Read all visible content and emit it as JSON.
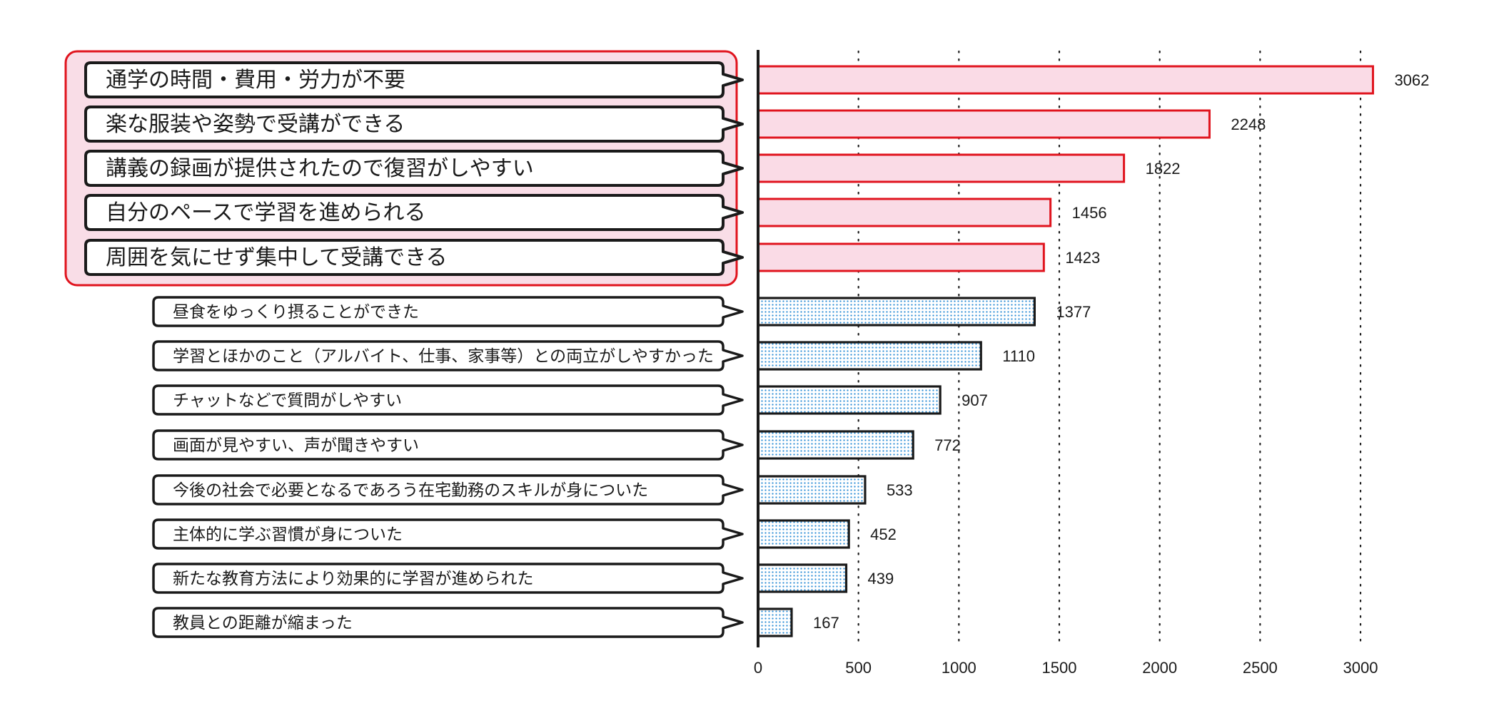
{
  "chart_data": {
    "type": "bar",
    "orientation": "horizontal",
    "categories": [
      "通学の時間・費用・労力が不要",
      "楽な服装や姿勢で受講ができる",
      "講義の録画が提供されたので復習がしやすい",
      "自分のペースで学習を進められる",
      "周囲を気にせず集中して受講できる",
      "昼食をゆっくり摂ることができた",
      "学習とほかのこと（アルバイト、仕事、家事等）との両立がしやすかった",
      "チャットなどで質問がしやすい",
      "画面が見やすい、声が聞きやすい",
      "今後の社会で必要となるであろう在宅勤務のスキルが身についた",
      "主体的に学ぶ習慣が身についた",
      "新たな教育方法により効果的に学習が進められた",
      "教員との距離が縮まった"
    ],
    "values": [
      3062,
      2248,
      1822,
      1456,
      1423,
      1377,
      1110,
      907,
      772,
      533,
      452,
      439,
      167
    ],
    "value_labels": [
      "3062",
      "2248",
      "1822",
      "1456",
      "1423",
      "1377",
      "1110",
      "907",
      "772",
      "533",
      "452",
      "439",
      "167"
    ],
    "highlighted_count": 5,
    "xlim": [
      0,
      3000
    ],
    "xticks": [
      0,
      500,
      1000,
      1500,
      2000,
      2500,
      3000
    ],
    "xtick_labels": [
      "0",
      "500",
      "1000",
      "1500",
      "2000",
      "2500",
      "3000"
    ],
    "grid": "vertical dotted",
    "colors": {
      "highlight_fill": "#fadbe6",
      "highlight_stroke": "#e0141e",
      "highlight_group_fill": "#f9dde7",
      "normal_stroke": "#1a1a1a",
      "dot_color": "#2e8fd6"
    }
  }
}
